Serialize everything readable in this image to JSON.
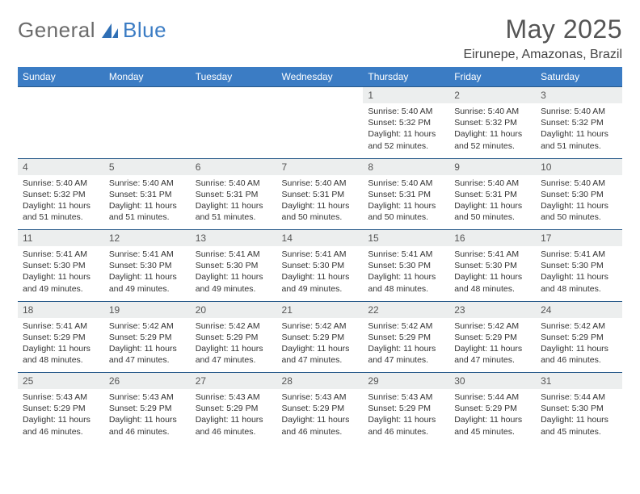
{
  "brand": {
    "word1": "General",
    "word2": "Blue",
    "grey_color": "#6b6b6b",
    "blue_color": "#3b7cc4"
  },
  "title": "May 2025",
  "location": "Eirunepe, Amazonas, Brazil",
  "header_bg": "#3b7cc4",
  "header_fg": "#ffffff",
  "daynum_bg": "#eceeee",
  "rule_color": "#285a8a",
  "page_bg": "#ffffff",
  "text_color": "#333333",
  "weekdays": [
    "Sunday",
    "Monday",
    "Tuesday",
    "Wednesday",
    "Thursday",
    "Friday",
    "Saturday"
  ],
  "weeks": [
    [
      null,
      null,
      null,
      null,
      {
        "n": "1",
        "sunrise": "Sunrise: 5:40 AM",
        "sunset": "Sunset: 5:32 PM",
        "daylight": "Daylight: 11 hours and 52 minutes."
      },
      {
        "n": "2",
        "sunrise": "Sunrise: 5:40 AM",
        "sunset": "Sunset: 5:32 PM",
        "daylight": "Daylight: 11 hours and 52 minutes."
      },
      {
        "n": "3",
        "sunrise": "Sunrise: 5:40 AM",
        "sunset": "Sunset: 5:32 PM",
        "daylight": "Daylight: 11 hours and 51 minutes."
      }
    ],
    [
      {
        "n": "4",
        "sunrise": "Sunrise: 5:40 AM",
        "sunset": "Sunset: 5:32 PM",
        "daylight": "Daylight: 11 hours and 51 minutes."
      },
      {
        "n": "5",
        "sunrise": "Sunrise: 5:40 AM",
        "sunset": "Sunset: 5:31 PM",
        "daylight": "Daylight: 11 hours and 51 minutes."
      },
      {
        "n": "6",
        "sunrise": "Sunrise: 5:40 AM",
        "sunset": "Sunset: 5:31 PM",
        "daylight": "Daylight: 11 hours and 51 minutes."
      },
      {
        "n": "7",
        "sunrise": "Sunrise: 5:40 AM",
        "sunset": "Sunset: 5:31 PM",
        "daylight": "Daylight: 11 hours and 50 minutes."
      },
      {
        "n": "8",
        "sunrise": "Sunrise: 5:40 AM",
        "sunset": "Sunset: 5:31 PM",
        "daylight": "Daylight: 11 hours and 50 minutes."
      },
      {
        "n": "9",
        "sunrise": "Sunrise: 5:40 AM",
        "sunset": "Sunset: 5:31 PM",
        "daylight": "Daylight: 11 hours and 50 minutes."
      },
      {
        "n": "10",
        "sunrise": "Sunrise: 5:40 AM",
        "sunset": "Sunset: 5:30 PM",
        "daylight": "Daylight: 11 hours and 50 minutes."
      }
    ],
    [
      {
        "n": "11",
        "sunrise": "Sunrise: 5:41 AM",
        "sunset": "Sunset: 5:30 PM",
        "daylight": "Daylight: 11 hours and 49 minutes."
      },
      {
        "n": "12",
        "sunrise": "Sunrise: 5:41 AM",
        "sunset": "Sunset: 5:30 PM",
        "daylight": "Daylight: 11 hours and 49 minutes."
      },
      {
        "n": "13",
        "sunrise": "Sunrise: 5:41 AM",
        "sunset": "Sunset: 5:30 PM",
        "daylight": "Daylight: 11 hours and 49 minutes."
      },
      {
        "n": "14",
        "sunrise": "Sunrise: 5:41 AM",
        "sunset": "Sunset: 5:30 PM",
        "daylight": "Daylight: 11 hours and 49 minutes."
      },
      {
        "n": "15",
        "sunrise": "Sunrise: 5:41 AM",
        "sunset": "Sunset: 5:30 PM",
        "daylight": "Daylight: 11 hours and 48 minutes."
      },
      {
        "n": "16",
        "sunrise": "Sunrise: 5:41 AM",
        "sunset": "Sunset: 5:30 PM",
        "daylight": "Daylight: 11 hours and 48 minutes."
      },
      {
        "n": "17",
        "sunrise": "Sunrise: 5:41 AM",
        "sunset": "Sunset: 5:30 PM",
        "daylight": "Daylight: 11 hours and 48 minutes."
      }
    ],
    [
      {
        "n": "18",
        "sunrise": "Sunrise: 5:41 AM",
        "sunset": "Sunset: 5:29 PM",
        "daylight": "Daylight: 11 hours and 48 minutes."
      },
      {
        "n": "19",
        "sunrise": "Sunrise: 5:42 AM",
        "sunset": "Sunset: 5:29 PM",
        "daylight": "Daylight: 11 hours and 47 minutes."
      },
      {
        "n": "20",
        "sunrise": "Sunrise: 5:42 AM",
        "sunset": "Sunset: 5:29 PM",
        "daylight": "Daylight: 11 hours and 47 minutes."
      },
      {
        "n": "21",
        "sunrise": "Sunrise: 5:42 AM",
        "sunset": "Sunset: 5:29 PM",
        "daylight": "Daylight: 11 hours and 47 minutes."
      },
      {
        "n": "22",
        "sunrise": "Sunrise: 5:42 AM",
        "sunset": "Sunset: 5:29 PM",
        "daylight": "Daylight: 11 hours and 47 minutes."
      },
      {
        "n": "23",
        "sunrise": "Sunrise: 5:42 AM",
        "sunset": "Sunset: 5:29 PM",
        "daylight": "Daylight: 11 hours and 47 minutes."
      },
      {
        "n": "24",
        "sunrise": "Sunrise: 5:42 AM",
        "sunset": "Sunset: 5:29 PM",
        "daylight": "Daylight: 11 hours and 46 minutes."
      }
    ],
    [
      {
        "n": "25",
        "sunrise": "Sunrise: 5:43 AM",
        "sunset": "Sunset: 5:29 PM",
        "daylight": "Daylight: 11 hours and 46 minutes."
      },
      {
        "n": "26",
        "sunrise": "Sunrise: 5:43 AM",
        "sunset": "Sunset: 5:29 PM",
        "daylight": "Daylight: 11 hours and 46 minutes."
      },
      {
        "n": "27",
        "sunrise": "Sunrise: 5:43 AM",
        "sunset": "Sunset: 5:29 PM",
        "daylight": "Daylight: 11 hours and 46 minutes."
      },
      {
        "n": "28",
        "sunrise": "Sunrise: 5:43 AM",
        "sunset": "Sunset: 5:29 PM",
        "daylight": "Daylight: 11 hours and 46 minutes."
      },
      {
        "n": "29",
        "sunrise": "Sunrise: 5:43 AM",
        "sunset": "Sunset: 5:29 PM",
        "daylight": "Daylight: 11 hours and 46 minutes."
      },
      {
        "n": "30",
        "sunrise": "Sunrise: 5:44 AM",
        "sunset": "Sunset: 5:29 PM",
        "daylight": "Daylight: 11 hours and 45 minutes."
      },
      {
        "n": "31",
        "sunrise": "Sunrise: 5:44 AM",
        "sunset": "Sunset: 5:30 PM",
        "daylight": "Daylight: 11 hours and 45 minutes."
      }
    ]
  ]
}
